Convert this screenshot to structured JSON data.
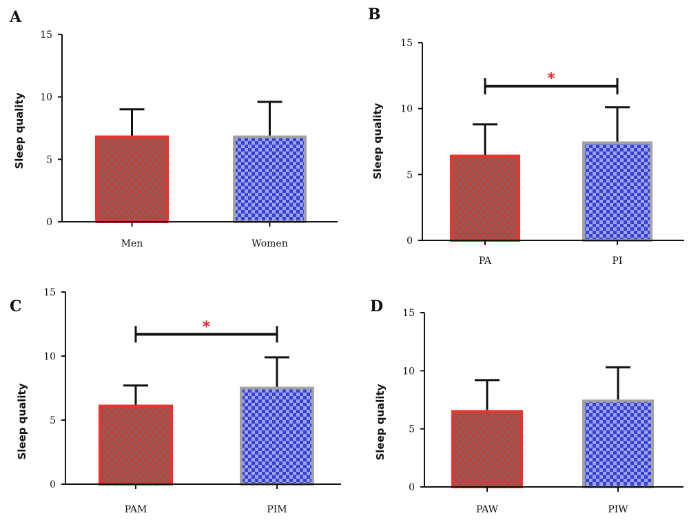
{
  "colors": {
    "red_fill": "#a6524f",
    "red_border": "#e8342f",
    "blue_fill": "#4a55d6",
    "blue_border": "#a2a2a2",
    "axis": "#111111",
    "star": "#e2262d"
  },
  "chart_data": [
    {
      "panel": "A",
      "type": "bar",
      "ylabel": "Sleep quality",
      "ylim": [
        0,
        15
      ],
      "yticks": [
        "0",
        "5",
        "10",
        "15"
      ],
      "categories": [
        "Men",
        "Women"
      ],
      "values": [
        6.8,
        6.8
      ],
      "errors": [
        2.2,
        2.8
      ],
      "significance": null
    },
    {
      "panel": "B",
      "type": "bar",
      "ylabel": "Sleep quality",
      "ylim": [
        0,
        15
      ],
      "yticks": [
        "0",
        "5",
        "10",
        "15"
      ],
      "categories": [
        "PA",
        "PI"
      ],
      "values": [
        6.4,
        7.4
      ],
      "errors": [
        2.4,
        2.7
      ],
      "significance": {
        "y": 11.7,
        "label": "*"
      }
    },
    {
      "panel": "C",
      "type": "bar",
      "ylabel": "Sleep quality",
      "ylim": [
        0,
        15
      ],
      "yticks": [
        "0",
        "5",
        "10",
        "15"
      ],
      "categories": [
        "PAM",
        "PIM"
      ],
      "values": [
        6.1,
        7.5
      ],
      "errors": [
        1.6,
        2.4
      ],
      "significance": {
        "y": 11.7,
        "label": "*"
      }
    },
    {
      "panel": "D",
      "type": "bar",
      "ylabel": "Sleep quality",
      "ylim": [
        0,
        15
      ],
      "yticks": [
        "0",
        "5",
        "10",
        "15"
      ],
      "categories": [
        "PAW",
        "PIW"
      ],
      "values": [
        6.5,
        7.4
      ],
      "errors": [
        2.7,
        2.9
      ],
      "significance": null
    }
  ]
}
